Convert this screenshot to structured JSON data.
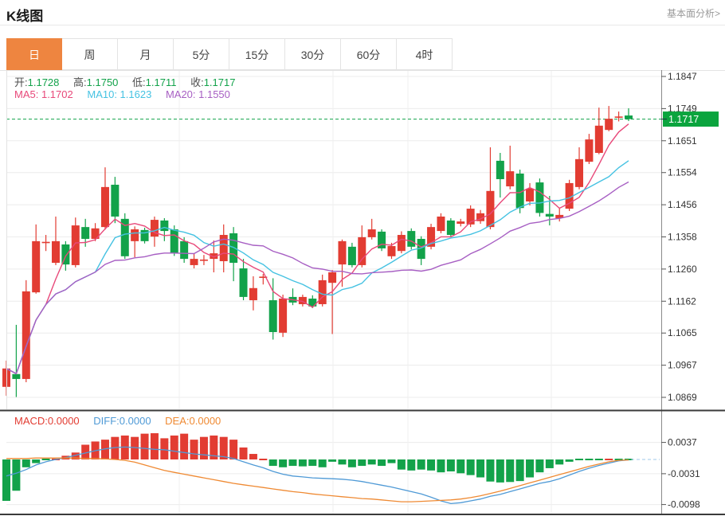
{
  "header": {
    "title": "K线图",
    "link": "基本面分析>"
  },
  "tabs": {
    "items": [
      "日",
      "周",
      "月",
      "5分",
      "15分",
      "30分",
      "60分",
      "4时"
    ],
    "active_index": 0
  },
  "readout": {
    "open_label": "开:",
    "open": "1.1728",
    "high_label": "高:",
    "high": "1.1750",
    "low_label": "低:",
    "low": "1.1711",
    "close_label": "收:",
    "close": "1.1717",
    "ma5_label": "MA5: ",
    "ma5": "1.1702",
    "ma10_label": "MA10: ",
    "ma10": "1.1623",
    "ma20_label": "MA20: ",
    "ma20": "1.1550"
  },
  "macd_readout": {
    "macd_label": "MACD:",
    "macd": "0.0000",
    "diff_label": "DIFF:",
    "diff": "0.0000",
    "dea_label": "DEA:",
    "dea": "0.0000"
  },
  "colors": {
    "up": "#e23c32",
    "down": "#12a24a",
    "badge": "#0ba43e",
    "ma5": "#e8497a",
    "ma10": "#45c2e2",
    "ma20": "#a75fc3",
    "diff": "#4f9ad6",
    "dea": "#ef8a33",
    "accent_tab": "#ee8540",
    "axis_text": "#333333",
    "link_gray": "#999999"
  },
  "chart_data": {
    "type": "candlestick+macd",
    "title": "K线图 daily candlestick with MA5/MA10/MA20 and MACD",
    "price_axis": {
      "tick_labels": [
        "1.1847",
        "1.1749",
        "1.1651",
        "1.1554",
        "1.1456",
        "1.1358",
        "1.1260",
        "1.1162",
        "1.1065",
        "1.0967",
        "1.0869"
      ],
      "range": [
        1.0869,
        1.1847
      ],
      "current_price_label": "1.1717",
      "current_price": 1.1717
    },
    "macd_axis": {
      "tick_labels": [
        "0.0037",
        "-0.0031",
        "-0.0098"
      ],
      "tick_values": [
        0.0037,
        -0.0031,
        -0.0098
      ],
      "zero_value": 0
    },
    "ma_windows": [
      5,
      10,
      20
    ],
    "legend": [
      "MA5",
      "MA10",
      "MA20",
      "MACD",
      "DIFF",
      "DEA"
    ],
    "grid": true,
    "candles_ohlc": [
      [
        1.0901,
        1.0981,
        1.0874,
        1.0957
      ],
      [
        1.094,
        1.109,
        1.087,
        1.0925
      ],
      [
        1.0925,
        1.1226,
        1.0915,
        1.1192
      ],
      [
        1.1189,
        1.1396,
        1.1185,
        1.1345
      ],
      [
        1.1338,
        1.1364,
        1.1315,
        1.1341
      ],
      [
        1.1279,
        1.142,
        1.1272,
        1.1345
      ],
      [
        1.1335,
        1.1345,
        1.1255,
        1.1274
      ],
      [
        1.1272,
        1.1417,
        1.1265,
        1.1393
      ],
      [
        1.1388,
        1.1413,
        1.1328,
        1.1352
      ],
      [
        1.1352,
        1.14,
        1.1345,
        1.1384
      ],
      [
        1.1388,
        1.157,
        1.138,
        1.151
      ],
      [
        1.1517,
        1.1541,
        1.14,
        1.142
      ],
      [
        1.1413,
        1.143,
        1.1291,
        1.1299
      ],
      [
        1.1345,
        1.139,
        1.1296,
        1.1381
      ],
      [
        1.1379,
        1.1386,
        1.1338,
        1.1345
      ],
      [
        1.1359,
        1.142,
        1.1328,
        1.141
      ],
      [
        1.1408,
        1.1415,
        1.1345,
        1.1376
      ],
      [
        1.1381,
        1.1393,
        1.13,
        1.1308
      ],
      [
        1.1345,
        1.1357,
        1.1279,
        1.1291
      ],
      [
        1.1272,
        1.1308,
        1.1262,
        1.1291
      ],
      [
        1.1286,
        1.1303,
        1.1272,
        1.1287
      ],
      [
        1.1291,
        1.1347,
        1.125,
        1.1308
      ],
      [
        1.1284,
        1.1396,
        1.125,
        1.1364
      ],
      [
        1.1369,
        1.1388,
        1.1223,
        1.1279
      ],
      [
        1.1262,
        1.1291,
        1.1165,
        1.1175
      ],
      [
        1.1165,
        1.1238,
        1.1134,
        1.1202
      ],
      [
        1.1232,
        1.1245,
        1.1213,
        1.1235
      ],
      [
        1.1165,
        1.1232,
        1.1045,
        1.1068
      ],
      [
        1.1066,
        1.1182,
        1.1053,
        1.117
      ],
      [
        1.1175,
        1.1201,
        1.115,
        1.1158
      ],
      [
        1.1153,
        1.1182,
        1.1146,
        1.1175
      ],
      [
        1.117,
        1.118,
        1.1141,
        1.1146
      ],
      [
        1.1153,
        1.1243,
        1.1146,
        1.1226
      ],
      [
        1.1218,
        1.1257,
        1.1062,
        1.125
      ],
      [
        1.1274,
        1.135,
        1.1206,
        1.1345
      ],
      [
        1.1328,
        1.134,
        1.1265,
        1.1272
      ],
      [
        1.1272,
        1.1393,
        1.1265,
        1.1357
      ],
      [
        1.1357,
        1.1413,
        1.135,
        1.1381
      ],
      [
        1.1374,
        1.1381,
        1.1315,
        1.1323
      ],
      [
        1.1299,
        1.134,
        1.1291,
        1.133
      ],
      [
        1.1315,
        1.1375,
        1.1308,
        1.1364
      ],
      [
        1.1376,
        1.1384,
        1.132,
        1.1328
      ],
      [
        1.1352,
        1.136,
        1.1272,
        1.1291
      ],
      [
        1.1328,
        1.1398,
        1.132,
        1.1388
      ],
      [
        1.1376,
        1.143,
        1.1369,
        1.142
      ],
      [
        1.1408,
        1.1415,
        1.1357,
        1.1364
      ],
      [
        1.1398,
        1.1413,
        1.139,
        1.1405
      ],
      [
        1.1396,
        1.1454,
        1.1388,
        1.1444
      ],
      [
        1.1406,
        1.144,
        1.1398,
        1.143
      ],
      [
        1.1388,
        1.1631,
        1.1381,
        1.1498
      ],
      [
        1.159,
        1.1614,
        1.1478,
        1.1534
      ],
      [
        1.1512,
        1.1636,
        1.1503,
        1.1558
      ],
      [
        1.1551,
        1.1563,
        1.143,
        1.1446
      ],
      [
        1.1466,
        1.1522,
        1.1454,
        1.1505
      ],
      [
        1.1524,
        1.1536,
        1.142,
        1.1431
      ],
      [
        1.1428,
        1.1483,
        1.1393,
        1.142
      ],
      [
        1.1415,
        1.1447,
        1.1405,
        1.1425
      ],
      [
        1.1444,
        1.1532,
        1.1437,
        1.1522
      ],
      [
        1.151,
        1.1631,
        1.1503,
        1.1595
      ],
      [
        1.1587,
        1.1672,
        1.158,
        1.1655
      ],
      [
        1.1614,
        1.1752,
        1.161,
        1.1697
      ],
      [
        1.1684,
        1.1757,
        1.168,
        1.1718
      ],
      [
        1.172,
        1.174,
        1.171,
        1.1723
      ],
      [
        1.1728,
        1.175,
        1.1711,
        1.1717
      ]
    ],
    "macd": {
      "hist": [
        -0.009,
        -0.0068,
        -0.0017,
        -0.0008,
        0.0,
        0.0003,
        0.0008,
        0.0015,
        0.0032,
        0.0039,
        0.0043,
        0.0049,
        0.0052,
        0.0049,
        0.0056,
        0.0057,
        0.0046,
        0.0052,
        0.0056,
        0.0043,
        0.0049,
        0.0052,
        0.0049,
        0.0043,
        0.0026,
        0.0012,
        0.0003,
        -0.0014,
        -0.0017,
        -0.0014,
        -0.0015,
        -0.0014,
        -0.0017,
        -0.0005,
        -0.0011,
        -0.0017,
        -0.0014,
        -0.0011,
        -0.0014,
        -0.0008,
        -0.0022,
        -0.0024,
        -0.0022,
        -0.0024,
        -0.0028,
        -0.0026,
        -0.003,
        -0.0034,
        -0.0039,
        -0.0048,
        -0.005,
        -0.0049,
        -0.0047,
        -0.0039,
        -0.0028,
        -0.0019,
        -0.0011,
        -0.0005,
        -0.0002,
        0.0,
        0.0,
        0.0002,
        0.0,
        0.0
      ],
      "diff": [
        -0.0036,
        -0.003,
        -0.0022,
        -0.0012,
        -0.0005,
        0.0,
        0.0004,
        0.0009,
        0.0014,
        0.0019,
        0.0023,
        0.0026,
        0.0027,
        0.0026,
        0.0024,
        0.0022,
        0.0021,
        0.0018,
        0.0015,
        0.0012,
        0.001,
        0.0008,
        0.0006,
        0.0002,
        -0.0005,
        -0.0012,
        -0.0018,
        -0.0026,
        -0.0032,
        -0.0036,
        -0.0038,
        -0.004,
        -0.0041,
        -0.0042,
        -0.0043,
        -0.0045,
        -0.0048,
        -0.0052,
        -0.0056,
        -0.006,
        -0.0065,
        -0.007,
        -0.0075,
        -0.0082,
        -0.009,
        -0.0096,
        -0.0094,
        -0.009,
        -0.0086,
        -0.008,
        -0.0076,
        -0.007,
        -0.0064,
        -0.0058,
        -0.0052,
        -0.0048,
        -0.0042,
        -0.0034,
        -0.0026,
        -0.0019,
        -0.0013,
        -0.0008,
        -0.0003,
        -0.0001
      ],
      "dea": [
        0.0002,
        0.0002,
        0.0002,
        0.0003,
        0.0003,
        0.0003,
        0.0003,
        0.0003,
        0.0002,
        0.0002,
        0.0001,
        0.0,
        -0.0002,
        -0.0006,
        -0.0012,
        -0.0018,
        -0.0024,
        -0.0028,
        -0.0032,
        -0.0036,
        -0.004,
        -0.0044,
        -0.0048,
        -0.0052,
        -0.0055,
        -0.0058,
        -0.0061,
        -0.0064,
        -0.0067,
        -0.007,
        -0.0072,
        -0.0075,
        -0.0077,
        -0.0079,
        -0.0081,
        -0.0083,
        -0.0085,
        -0.0086,
        -0.0088,
        -0.009,
        -0.0092,
        -0.0092,
        -0.0091,
        -0.009,
        -0.0089,
        -0.0088,
        -0.0086,
        -0.0083,
        -0.0079,
        -0.0074,
        -0.0069,
        -0.0063,
        -0.0057,
        -0.0051,
        -0.0045,
        -0.0039,
        -0.0033,
        -0.0027,
        -0.0021,
        -0.0015,
        -0.001,
        -0.0005,
        -0.0002,
        -0.0001
      ]
    }
  }
}
